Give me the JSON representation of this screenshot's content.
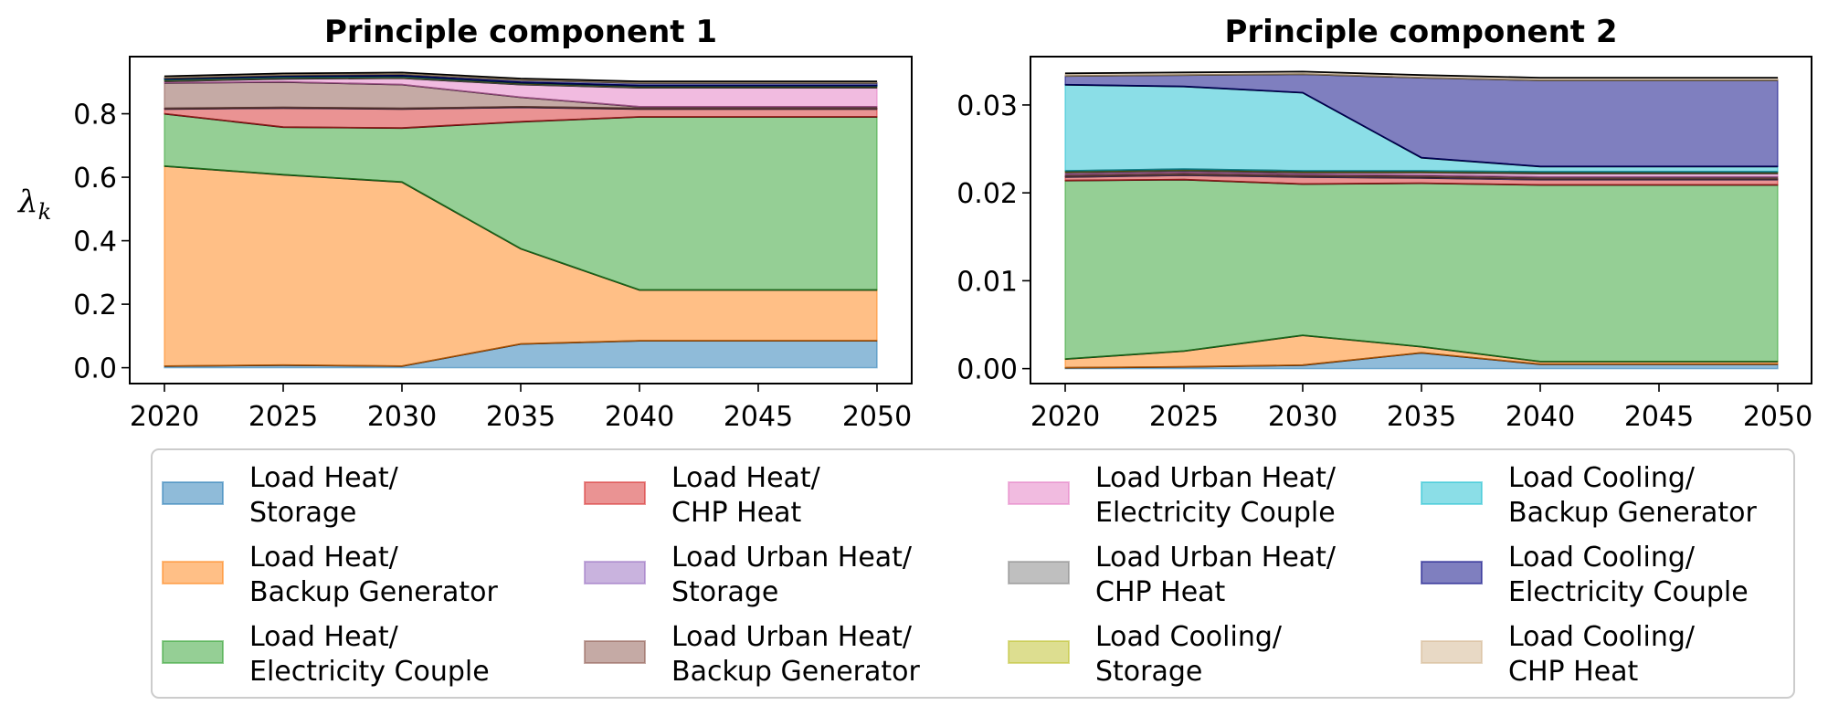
{
  "chart_data": [
    {
      "type": "area",
      "title": "Principle component 1",
      "ylabel": "λ",
      "ylabel_sub": "k",
      "x": [
        2020,
        2025,
        2030,
        2035,
        2040,
        2045,
        2050
      ],
      "xticks": [
        "2020",
        "2025",
        "2030",
        "2035",
        "2040",
        "2045",
        "2050"
      ],
      "ylim": [
        -0.05,
        0.98
      ],
      "yticks": [
        0.0,
        0.2,
        0.4,
        0.6,
        0.8
      ],
      "ytick_labels": [
        "0.0",
        "0.2",
        "0.4",
        "0.6",
        "0.8"
      ],
      "stacked": true,
      "series": [
        {
          "name": "Load Heat/ Storage",
          "values": [
            0.005,
            0.008,
            0.005,
            0.075,
            0.085,
            0.085,
            0.085
          ]
        },
        {
          "name": "Load Heat/ Backup Generator",
          "values": [
            0.63,
            0.6,
            0.58,
            0.3,
            0.16,
            0.16,
            0.16
          ]
        },
        {
          "name": "Load Heat/ Electricity Couple",
          "values": [
            0.165,
            0.15,
            0.17,
            0.4,
            0.545,
            0.545,
            0.545
          ]
        },
        {
          "name": "Load Heat/ CHP Heat",
          "values": [
            0.015,
            0.06,
            0.06,
            0.045,
            0.025,
            0.025,
            0.025
          ]
        },
        {
          "name": "Load Urban Heat/ Storage",
          "values": [
            0.002,
            0.002,
            0.002,
            0.002,
            0.002,
            0.002,
            0.002
          ]
        },
        {
          "name": "Load Urban Heat/ Backup Generator",
          "values": [
            0.08,
            0.08,
            0.075,
            0.03,
            0.005,
            0.005,
            0.005
          ]
        },
        {
          "name": "Load Urban Heat/ Electricity Couple",
          "values": [
            0.005,
            0.01,
            0.02,
            0.04,
            0.06,
            0.06,
            0.06
          ]
        },
        {
          "name": "Load Urban Heat/ CHP Heat",
          "values": [
            0.003,
            0.003,
            0.003,
            0.003,
            0.003,
            0.003,
            0.003
          ]
        },
        {
          "name": "Load Cooling/ Storage",
          "values": [
            0.002,
            0.002,
            0.002,
            0.002,
            0.002,
            0.002,
            0.002
          ]
        },
        {
          "name": "Load Cooling/ Backup Generator",
          "values": [
            0.003,
            0.003,
            0.003,
            0.002,
            0.002,
            0.002,
            0.002
          ]
        },
        {
          "name": "Load Cooling/ Electricity Couple",
          "values": [
            0.003,
            0.004,
            0.005,
            0.007,
            0.008,
            0.008,
            0.008
          ]
        },
        {
          "name": "Load Cooling/ CHP Heat",
          "values": [
            0.005,
            0.005,
            0.005,
            0.005,
            0.005,
            0.005,
            0.005
          ]
        }
      ]
    },
    {
      "type": "area",
      "title": "Principle component 2",
      "x": [
        2020,
        2025,
        2030,
        2035,
        2040,
        2045,
        2050
      ],
      "xticks": [
        "2020",
        "2025",
        "2030",
        "2035",
        "2040",
        "2045",
        "2050"
      ],
      "ylim": [
        -0.0017,
        0.0355
      ],
      "yticks": [
        0.0,
        0.01,
        0.02,
        0.03
      ],
      "ytick_labels": [
        "0.00",
        "0.01",
        "0.02",
        "0.03"
      ],
      "stacked": true,
      "series": [
        {
          "name": "Load Heat/ Storage",
          "values": [
            0.0001,
            0.0002,
            0.0004,
            0.0018,
            0.0005,
            0.0005,
            0.0005
          ]
        },
        {
          "name": "Load Heat/ Backup Generator",
          "values": [
            0.001,
            0.0018,
            0.0034,
            0.0007,
            0.0003,
            0.0003,
            0.0003
          ]
        },
        {
          "name": "Load Heat/ Electricity Couple",
          "values": [
            0.0203,
            0.0195,
            0.0172,
            0.0186,
            0.0201,
            0.0201,
            0.0201
          ]
        },
        {
          "name": "Load Heat/ CHP Heat",
          "values": [
            0.0004,
            0.0005,
            0.0008,
            0.0006,
            0.0006,
            0.0006,
            0.0006
          ]
        },
        {
          "name": "Load Urban Heat/ Storage",
          "values": [
            0.0001,
            0.0001,
            0.0001,
            0.0001,
            0.0001,
            0.0001,
            0.0001
          ]
        },
        {
          "name": "Load Urban Heat/ Backup Generator",
          "values": [
            0.0002,
            0.0002,
            0.0002,
            0.0002,
            0.0002,
            0.0002,
            0.0002
          ]
        },
        {
          "name": "Load Urban Heat/ Electricity Couple",
          "values": [
            0.0002,
            0.0002,
            0.0002,
            0.0003,
            0.0004,
            0.0004,
            0.0004
          ]
        },
        {
          "name": "Load Urban Heat/ CHP Heat",
          "values": [
            0.0001,
            0.0001,
            0.0001,
            0.0001,
            0.0001,
            0.0001,
            0.0001
          ]
        },
        {
          "name": "Load Cooling/ Storage",
          "values": [
            0.0001,
            0.0001,
            0.0001,
            0.0001,
            0.0001,
            0.0001,
            0.0001
          ]
        },
        {
          "name": "Load Cooling/ Backup Generator",
          "values": [
            0.0098,
            0.0094,
            0.0089,
            0.0015,
            0.0006,
            0.0006,
            0.0006
          ]
        },
        {
          "name": "Load Cooling/ Electricity Couple",
          "values": [
            0.001,
            0.0013,
            0.0021,
            0.0091,
            0.0098,
            0.0098,
            0.0098
          ]
        },
        {
          "name": "Load Cooling/ CHP Heat",
          "values": [
            0.0003,
            0.0003,
            0.0003,
            0.0003,
            0.0003,
            0.0003,
            0.0003
          ]
        }
      ]
    }
  ],
  "legend": {
    "placement": "bottom",
    "columns": 4,
    "entries": [
      {
        "line1": "Load Heat/",
        "line2": "Storage",
        "color": "#1f77b4"
      },
      {
        "line1": "Load Heat/",
        "line2": "Backup Generator",
        "color": "#ff7f0e"
      },
      {
        "line1": "Load Heat/",
        "line2": "Electricity Couple",
        "color": "#2ca02c"
      },
      {
        "line1": "Load Heat/",
        "line2": "CHP Heat",
        "color": "#d62728"
      },
      {
        "line1": "Load Urban Heat/",
        "line2": "Storage",
        "color": "#9467bd"
      },
      {
        "line1": "Load Urban Heat/",
        "line2": "Backup Generator",
        "color": "#8c564b"
      },
      {
        "line1": "Load Urban Heat/",
        "line2": "Electricity Couple",
        "color": "#e377c2"
      },
      {
        "line1": "Load Urban Heat/",
        "line2": "CHP Heat",
        "color": "#7f7f7f"
      },
      {
        "line1": "Load Cooling/",
        "line2": "Storage",
        "color": "#bcbd22"
      },
      {
        "line1": "Load Cooling/",
        "line2": "Backup Generator",
        "color": "#17becf"
      },
      {
        "line1": "Load Cooling/",
        "line2": "Electricity Couple",
        "color": "#000080"
      },
      {
        "line1": "Load Cooling/",
        "line2": "CHP Heat",
        "color": "#d2b48c"
      }
    ]
  }
}
